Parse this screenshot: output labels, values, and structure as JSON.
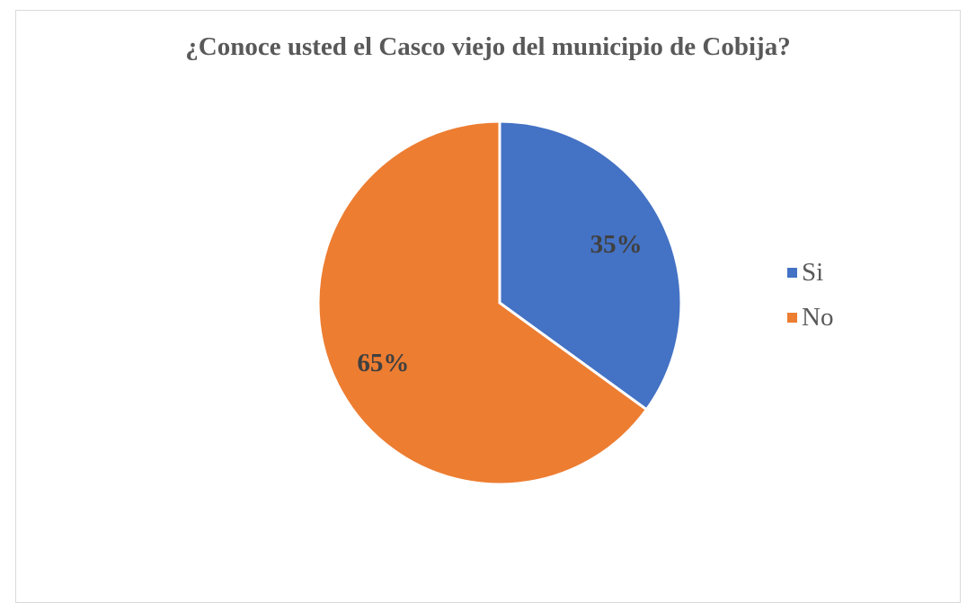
{
  "chart_data": {
    "type": "pie",
    "title": "¿Conoce usted el Casco viejo del municipio de Cobija?",
    "categories": [
      "Si",
      "No"
    ],
    "values": [
      35,
      65
    ],
    "data_labels": [
      "35%",
      "65%"
    ],
    "colors": [
      "#4472C4",
      "#ED7D31"
    ],
    "legend_position": "right"
  }
}
